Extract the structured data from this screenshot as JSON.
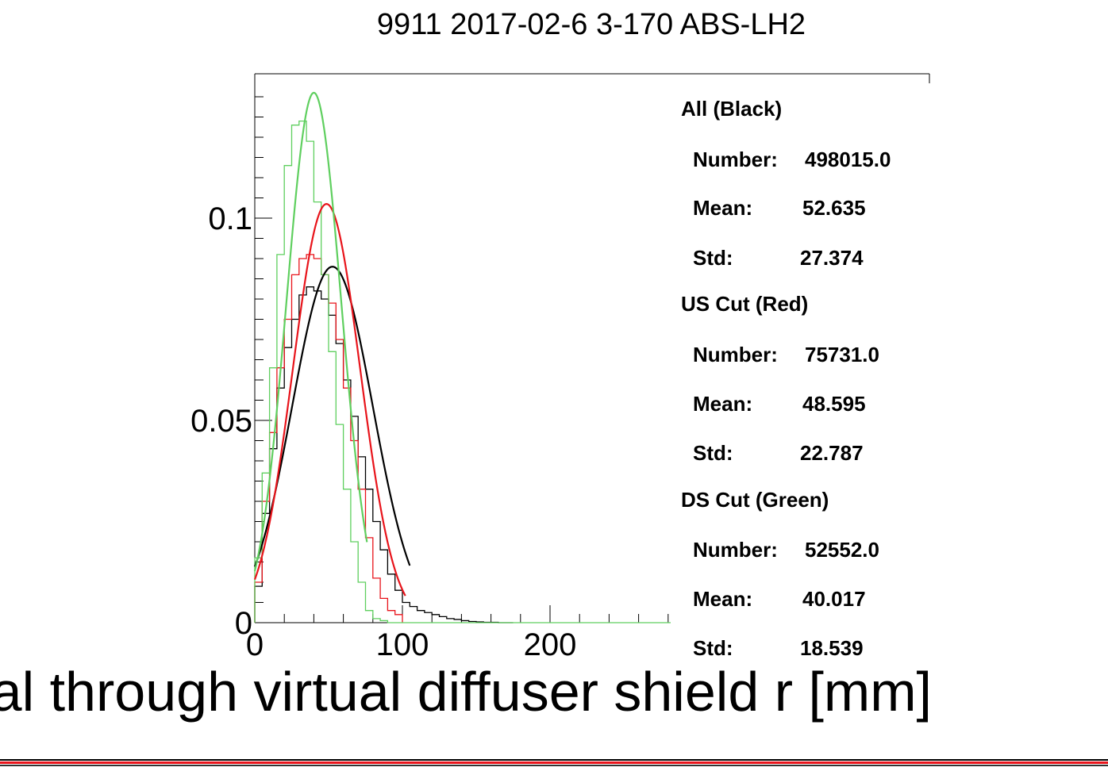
{
  "colors": {
    "all": "#000000",
    "us_cut": "#e8141b",
    "ds_cut": "#5fcf5f",
    "background": "#ffffff",
    "frame": "#000000"
  },
  "chart_data": {
    "type": "line",
    "title": "9911 2017-02-6 3-170 ABS-LH2",
    "xlabel": "oal through virtual diffuser shield r [mm]",
    "ylabel": "",
    "xlim": [
      0,
      285
    ],
    "ylim": [
      0,
      0.13
    ],
    "x_ticks": [
      0,
      100,
      200
    ],
    "y_ticks": [
      0,
      0.05,
      0.1
    ],
    "x_tick_labels": [
      "0",
      "100",
      "200"
    ],
    "y_tick_labels": [
      "0",
      "0.05",
      "0.1"
    ],
    "bin_width": 5,
    "legend_position": "right",
    "series": [
      {
        "name": "All (Black)",
        "kind": "histogram+gaussian-fit",
        "bin_edges_start": 0,
        "values": [
          0.009,
          0.027,
          0.043,
          0.058,
          0.068,
          0.075,
          0.081,
          0.083,
          0.082,
          0.08,
          0.076,
          0.069,
          0.06,
          0.051,
          0.041,
          0.033,
          0.025,
          0.018,
          0.012,
          0.008,
          0.005,
          0.004,
          0.003,
          0.0025,
          0.002,
          0.0015,
          0.001,
          0.0008,
          0.0005,
          0.0003,
          0.0002,
          0.0001,
          0.0001,
          0.0,
          0.0
        ],
        "fit": {
          "mean": 52.635,
          "sigma": 27.374,
          "peak": 0.088,
          "range": [
            0,
            105
          ]
        },
        "stats": {
          "number": "498015.0",
          "mean": "52.635",
          "std": "27.374"
        }
      },
      {
        "name": "US Cut (Red)",
        "kind": "histogram+gaussian-fit",
        "bin_edges_start": 0,
        "values": [
          0.01,
          0.03,
          0.047,
          0.063,
          0.075,
          0.086,
          0.09,
          0.091,
          0.09,
          0.086,
          0.079,
          0.07,
          0.058,
          0.045,
          0.033,
          0.021,
          0.011,
          0.006,
          0.003,
          0.002
        ],
        "fit": {
          "mean": 48.595,
          "sigma": 22.787,
          "peak": 0.1035,
          "range": [
            0,
            102
          ]
        },
        "stats": {
          "number": "75731.0",
          "mean": "48.595",
          "std": "22.787"
        }
      },
      {
        "name": "DS Cut (Green)",
        "kind": "histogram+gaussian-fit",
        "bin_edges_start": 0,
        "values": [
          0.016,
          0.037,
          0.063,
          0.091,
          0.113,
          0.123,
          0.124,
          0.119,
          0.104,
          0.086,
          0.067,
          0.049,
          0.033,
          0.02,
          0.01,
          0.003,
          0.001,
          0.0005,
          0.0,
          0.0,
          0.0,
          0.0,
          0.0,
          0.0,
          0.0,
          0.0,
          0.0,
          0.0,
          0.0,
          0.0,
          0.0,
          0.0,
          0.0,
          0.0,
          0.0,
          0.0,
          0.0,
          0.0,
          0.0,
          0.0,
          0.0,
          0.0,
          0.0,
          0.0,
          0.0,
          0.0,
          0.0,
          0.0,
          0.0,
          0.0,
          0.0,
          0.0,
          0.0,
          0.0,
          0.0,
          0.0,
          0.0
        ],
        "fit": {
          "mean": 40.017,
          "sigma": 18.539,
          "peak": 0.131,
          "range": [
            0,
            76
          ]
        },
        "stats": {
          "number": "52552.0",
          "mean": "40.017",
          "std": "18.539"
        }
      }
    ]
  },
  "stats_box": {
    "groups": [
      {
        "title": "All (Black)",
        "number_label": "Number:",
        "number": "498015.0",
        "mean_label": "Mean:",
        "mean": "52.635",
        "std_label": "Std:",
        "std": "27.374"
      },
      {
        "title": "US Cut (Red)",
        "number_label": "Number:",
        "number": "75731.0",
        "mean_label": "Mean:",
        "mean": "48.595",
        "std_label": "Std:",
        "std": "22.787"
      },
      {
        "title": "DS Cut (Green)",
        "number_label": "Number:",
        "number": "52552.0",
        "mean_label": "Mean:",
        "mean": "40.017",
        "std_label": "Std:",
        "std": "18.539"
      }
    ]
  }
}
